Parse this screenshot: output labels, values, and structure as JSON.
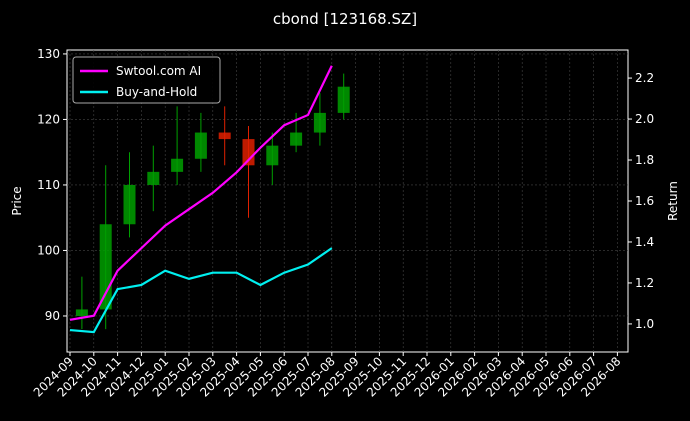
{
  "chart_data": {
    "type": "candlestick-with-returns",
    "title": "cbond [123168.SZ]",
    "ylabel": "Price",
    "y2label": "Return",
    "xticks": [
      "2024-09",
      "2024-10",
      "2024-11",
      "2024-12",
      "2025-01",
      "2025-02",
      "2025-03",
      "2025-04",
      "2025-05",
      "2025-06",
      "2025-07",
      "2025-08",
      "2025-09",
      "2025-10",
      "2025-11",
      "2025-12",
      "2026-01",
      "2026-02",
      "2026-03",
      "2026-04",
      "2026-05",
      "2026-06",
      "2026-07",
      "2026-08"
    ],
    "ylim": [
      84.5,
      130.6
    ],
    "yticks": [
      90,
      100,
      110,
      120,
      130
    ],
    "y2lim": [
      0.863,
      2.337
    ],
    "y2ticks": [
      {
        "value": 1.0,
        "label": "1.0"
      },
      {
        "value": 1.2,
        "label": "1.2"
      },
      {
        "value": 1.4,
        "label": "1.4"
      },
      {
        "value": 1.6,
        "label": "1.6"
      },
      {
        "value": 1.8,
        "label": "1.8"
      },
      {
        "value": 2.0,
        "label": "2.0"
      },
      {
        "value": 2.2,
        "label": "2.2"
      }
    ],
    "grid": true,
    "legend": "upper left",
    "candles": {
      "x": [
        "2024-09",
        "2024-10",
        "2024-11",
        "2024-12",
        "2025-01",
        "2025-02",
        "2025-03",
        "2025-04",
        "2025-05",
        "2025-06",
        "2025-07",
        "2025-08"
      ],
      "open": [
        90,
        91,
        104,
        110,
        112,
        114,
        118,
        117,
        113,
        116,
        118,
        121
      ],
      "high": [
        96,
        113,
        115,
        116,
        122,
        121,
        122,
        119,
        118,
        121,
        124,
        127
      ],
      "low": [
        88,
        88,
        102,
        106,
        110,
        112,
        113,
        105,
        110,
        115,
        116,
        120
      ],
      "close": [
        91,
        104,
        110,
        112,
        114,
        118,
        117,
        113,
        116,
        118,
        121,
        125
      ],
      "up_color": "#00a000",
      "down_color": "#e02000"
    },
    "x": [
      "2024-09",
      "2024-10",
      "2024-11",
      "2024-12",
      "2025-01",
      "2025-02",
      "2025-03",
      "2025-04",
      "2025-05",
      "2025-06",
      "2025-07",
      "2025-08"
    ],
    "series": [
      {
        "name": "Swtool.com AI",
        "color": "#ff00ff",
        "axis": "y2",
        "values": [
          1.02,
          1.04,
          1.26,
          1.37,
          1.48,
          1.56,
          1.64,
          1.74,
          1.86,
          1.97,
          2.02,
          2.26
        ]
      },
      {
        "name": "Buy-and-Hold",
        "color": "#00f0f0",
        "axis": "y2",
        "values": [
          0.97,
          0.96,
          1.17,
          1.19,
          1.26,
          1.22,
          1.25,
          1.25,
          1.19,
          1.25,
          1.29,
          1.37
        ]
      }
    ]
  }
}
